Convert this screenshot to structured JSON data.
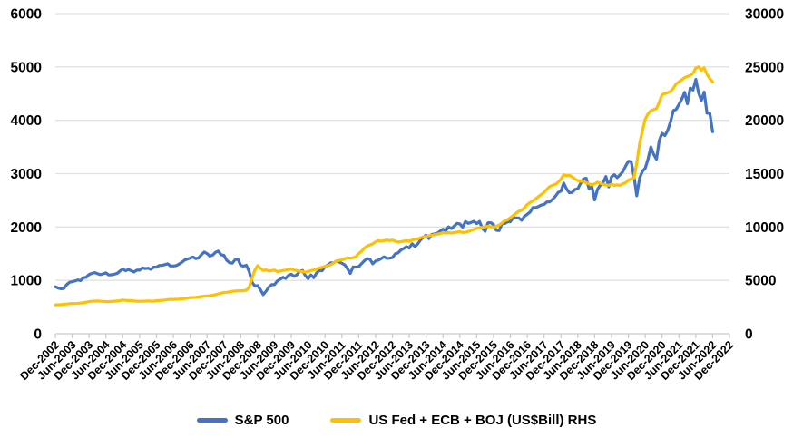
{
  "chart_data": {
    "type": "line",
    "title": "",
    "x_axis": {
      "tick_labels": [
        "Dec-2002",
        "Jun-2003",
        "Dec-2003",
        "Jun-2004",
        "Dec-2004",
        "Jun-2005",
        "Dec-2005",
        "Jun-2006",
        "Dec-2006",
        "Jun-2007",
        "Dec-2007",
        "Jun-2008",
        "Dec-2008",
        "Jun-2009",
        "Dec-2009",
        "Jun-2010",
        "Dec-2010",
        "Jun-2011",
        "Dec-2011",
        "Jun-2012",
        "Dec-2012",
        "Jun-2013",
        "Dec-2013",
        "Jun-2014",
        "Dec-2014",
        "Jun-2015",
        "Dec-2015",
        "Jun-2016",
        "Dec-2016",
        "Jun-2017",
        "Dec-2017",
        "Jun-2018",
        "Dec-2018",
        "Jun-2019",
        "Dec-2019",
        "Jun-2020",
        "Dec-2020",
        "Jun-2021",
        "Dec-2021",
        "Jun-2022",
        "Dec-2022"
      ],
      "months_per_tick": 6,
      "total_months": 240
    },
    "left_axis": {
      "min": 0,
      "max": 6000,
      "step": 1000,
      "tick_labels": [
        "0",
        "1000",
        "2000",
        "3000",
        "4000",
        "5000",
        "6000"
      ]
    },
    "right_axis": {
      "min": 0,
      "max": 30000,
      "step": 5000,
      "tick_labels": [
        "0",
        "5000",
        "10000",
        "15000",
        "20000",
        "25000",
        "30000"
      ]
    },
    "grid": {
      "horizontal": true,
      "vertical": false,
      "gridline_color": "#e2e2e2",
      "axis_color": "#c9c9c9",
      "label_color": "#000000"
    },
    "legend_position": "bottom-center",
    "series": [
      {
        "id": "sp500-line",
        "name": "S&P 500",
        "axis": "left",
        "color": "#4472C4",
        "start_month": 0,
        "monthly_values": [
          880,
          856,
          841,
          848,
          917,
          964,
          975,
          990,
          1008,
          996,
          1051,
          1058,
          1112,
          1131,
          1145,
          1126,
          1107,
          1121,
          1141,
          1102,
          1104,
          1115,
          1130,
          1174,
          1212,
          1181,
          1204,
          1181,
          1157,
          1192,
          1191,
          1234,
          1220,
          1229,
          1207,
          1249,
          1248,
          1280,
          1281,
          1295,
          1311,
          1270,
          1270,
          1277,
          1304,
          1336,
          1378,
          1401,
          1418,
          1438,
          1407,
          1421,
          1482,
          1531,
          1503,
          1455,
          1474,
          1527,
          1549,
          1481,
          1468,
          1379,
          1331,
          1323,
          1386,
          1400,
          1280,
          1267,
          1283,
          1166,
          969,
          896,
          903,
          826,
          735,
          798,
          873,
          919,
          919,
          987,
          1021,
          1057,
          1036,
          1096,
          1115,
          1074,
          1104,
          1169,
          1187,
          1089,
          1031,
          1102,
          1049,
          1141,
          1183,
          1181,
          1258,
          1286,
          1327,
          1326,
          1364,
          1345,
          1321,
          1292,
          1219,
          1131,
          1253,
          1247,
          1258,
          1312,
          1366,
          1408,
          1398,
          1310,
          1362,
          1379,
          1407,
          1441,
          1412,
          1416,
          1426,
          1498,
          1515,
          1569,
          1598,
          1631,
          1606,
          1686,
          1633,
          1682,
          1757,
          1806,
          1848,
          1783,
          1859,
          1872,
          1884,
          1924,
          1960,
          1931,
          2003,
          1972,
          2018,
          2068,
          2059,
          1995,
          2105,
          2068,
          2086,
          2107,
          2063,
          2104,
          1972,
          1920,
          2079,
          2080,
          2044,
          1940,
          1932,
          2060,
          2065,
          2097,
          2099,
          2174,
          2171,
          2168,
          2126,
          2199,
          2239,
          2279,
          2364,
          2363,
          2384,
          2412,
          2423,
          2470,
          2472,
          2519,
          2575,
          2648,
          2674,
          2824,
          2714,
          2641,
          2648,
          2705,
          2718,
          2816,
          2902,
          2914,
          2712,
          2760,
          2507,
          2704,
          2784,
          2834,
          2946,
          2752,
          2942,
          2980,
          2926,
          2977,
          3038,
          3141,
          3231,
          3226,
          2954,
          2585,
          2912,
          3044,
          3100,
          3271,
          3500,
          3363,
          3270,
          3622,
          3756,
          3714,
          3811,
          3973,
          4181,
          4204,
          4298,
          4395,
          4523,
          4308,
          4605,
          4567,
          4766,
          4516,
          4374,
          4530,
          4132,
          4132,
          3785
        ]
      },
      {
        "id": "cb-line",
        "name": "US Fed + ECB + BOJ (US$Bill) RHS",
        "axis": "right",
        "color": "#FFC000",
        "start_month": 0,
        "monthly_values": [
          2700,
          2720,
          2740,
          2760,
          2790,
          2820,
          2840,
          2830,
          2850,
          2880,
          2910,
          2960,
          3020,
          3040,
          3060,
          3070,
          3050,
          3030,
          3020,
          3010,
          3030,
          3050,
          3070,
          3110,
          3160,
          3130,
          3110,
          3100,
          3080,
          3050,
          3040,
          3050,
          3060,
          3080,
          3060,
          3050,
          3090,
          3120,
          3140,
          3160,
          3200,
          3220,
          3210,
          3230,
          3250,
          3270,
          3300,
          3340,
          3390,
          3400,
          3420,
          3440,
          3490,
          3520,
          3540,
          3560,
          3600,
          3660,
          3740,
          3800,
          3870,
          3880,
          3930,
          3980,
          4000,
          4020,
          4030,
          4040,
          4080,
          4380,
          5180,
          5930,
          6380,
          6130,
          5930,
          5980,
          5870,
          5920,
          5970,
          5820,
          5870,
          5920,
          5970,
          6020,
          6070,
          5970,
          5920,
          5870,
          5820,
          5770,
          5820,
          5920,
          5970,
          6070,
          6170,
          6220,
          6320,
          6370,
          6470,
          6620,
          6820,
          6870,
          6920,
          7020,
          7120,
          7070,
          7120,
          7220,
          7520,
          7720,
          8020,
          8220,
          8320,
          8420,
          8620,
          8720,
          8680,
          8730,
          8780,
          8730,
          8780,
          8680,
          8580,
          8630,
          8680,
          8730,
          8680,
          8780,
          8830,
          8880,
          8980,
          9080,
          9130,
          9180,
          9230,
          9280,
          9330,
          9380,
          9480,
          9430,
          9480,
          9430,
          9480,
          9530,
          9580,
          9480,
          9530,
          9580,
          9680,
          9780,
          9880,
          9930,
          9980,
          10030,
          10080,
          10030,
          9980,
          10080,
          10180,
          10380,
          10580,
          10680,
          10880,
          11080,
          11280,
          11480,
          11580,
          11800,
          12100,
          12300,
          12450,
          12650,
          12850,
          13050,
          13250,
          13550,
          13800,
          13900,
          14000,
          14200,
          14500,
          14900,
          14800,
          14850,
          14700,
          14500,
          14350,
          14300,
          14250,
          14150,
          14050,
          13950,
          14050,
          14200,
          14100,
          14000,
          13950,
          13900,
          14000,
          13900,
          13950,
          13900,
          14050,
          14150,
          14400,
          14500,
          14600,
          16000,
          17800,
          19000,
          20100,
          20600,
          20900,
          21000,
          21100,
          21700,
          22400,
          22500,
          22600,
          22700,
          23000,
          23400,
          23600,
          23800,
          24000,
          24100,
          24200,
          24400,
          24900,
          25000,
          24700,
          24900,
          24300,
          23900,
          23600
        ]
      }
    ],
    "legend": [
      {
        "label": "S&P 500",
        "color": "#4472C4",
        "marker": "line-marker"
      },
      {
        "label": "US Fed + ECB + BOJ (US$Bill) RHS",
        "color": "#FFC000",
        "marker": "line-marker"
      }
    ]
  }
}
